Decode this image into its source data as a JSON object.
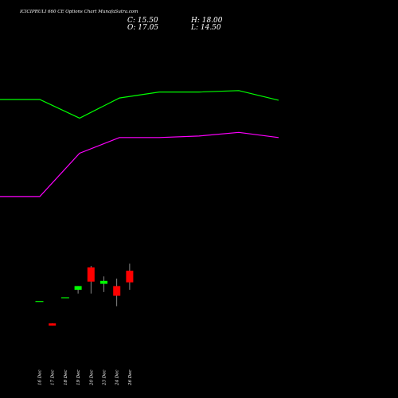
{
  "chart_data": {
    "type": "candlestick",
    "title": "ICICIPRULI 660 CE Options Chart MunafaSutra.com",
    "summary": {
      "close_label": "C: 15.50",
      "open_label": "O: 17.05",
      "high_label": "H: 18.00",
      "low_label": "L: 14.50"
    },
    "categories": [
      "16 Dec",
      "17 Dec",
      "18 Dec",
      "19 Dec",
      "20 Dec",
      "23 Dec",
      "24 Dec",
      "26 Dec"
    ],
    "candles": [
      {
        "date": "16 Dec",
        "open": 13.0,
        "high": 13.0,
        "low": 13.0,
        "close": 13.0
      },
      {
        "date": "17 Dec",
        "open": 10.0,
        "high": 10.0,
        "low": 9.7,
        "close": 9.7
      },
      {
        "date": "18 Dec",
        "open": 13.5,
        "high": 13.5,
        "low": 13.5,
        "close": 13.5
      },
      {
        "date": "19 Dec",
        "open": 14.5,
        "high": 15.0,
        "low": 14.0,
        "close": 15.0
      },
      {
        "date": "20 Dec",
        "open": 17.5,
        "high": 17.7,
        "low": 14.0,
        "close": 15.6
      },
      {
        "date": "23 Dec",
        "open": 15.3,
        "high": 16.3,
        "low": 14.2,
        "close": 15.7
      },
      {
        "date": "24 Dec",
        "open": 15.0,
        "high": 16.0,
        "low": 12.3,
        "close": 13.7
      },
      {
        "date": "26 Dec",
        "open": 17.05,
        "high": 18.0,
        "low": 14.5,
        "close": 15.5
      }
    ],
    "series": [
      {
        "color": "#00ff00",
        "values": [
          40.0,
          40.0,
          37.5,
          40.2,
          41.0,
          41.0,
          41.2,
          39.9
        ]
      },
      {
        "color": "#ff00ff",
        "values": [
          27.0,
          27.0,
          32.8,
          34.9,
          34.9,
          35.1,
          35.6,
          34.9
        ]
      }
    ],
    "ylim": [
      0,
      48
    ],
    "grid": false,
    "colors": {
      "background": "#000000",
      "up_candle": "#00ff00",
      "down_candle": "#ff0000",
      "text": "#ffffff"
    }
  }
}
